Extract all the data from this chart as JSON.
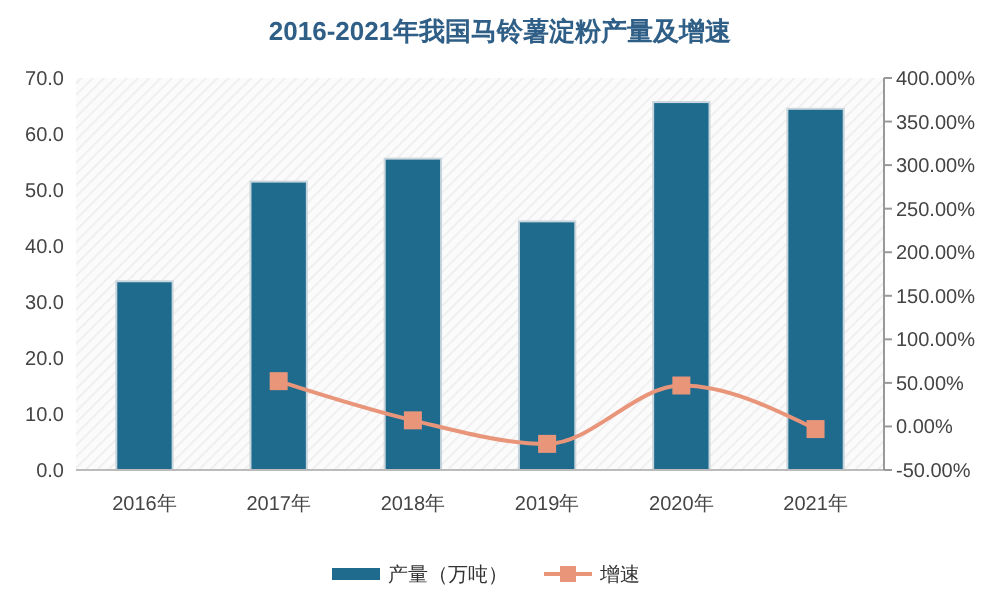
{
  "chart_data": {
    "type": "bar",
    "title": "2016-2021年我国马铃薯淀粉产量及增速",
    "categories": [
      "2016年",
      "2017年",
      "2018年",
      "2019年",
      "2020年",
      "2021年"
    ],
    "series": [
      {
        "name": "产量（万吨）",
        "color": "#1f6b8e",
        "values": [
          33.7,
          51.5,
          55.6,
          44.4,
          65.7,
          64.5
        ]
      },
      {
        "name": "增速",
        "type": "line",
        "axis": "y2",
        "color": "#e8957a",
        "marker": "square",
        "values": [
          null,
          52,
          7,
          -20,
          47,
          -3
        ]
      }
    ],
    "ylim": [
      0,
      70
    ],
    "yticks": [
      {
        "value": 0,
        "label": "0.0"
      },
      {
        "value": 10,
        "label": "10.0"
      },
      {
        "value": 20,
        "label": "20.0"
      },
      {
        "value": 30,
        "label": "30.0"
      },
      {
        "value": 40,
        "label": "40.0"
      },
      {
        "value": 50,
        "label": "50.0"
      },
      {
        "value": 60,
        "label": "60.0"
      },
      {
        "value": 70,
        "label": "70.0"
      }
    ],
    "y2lim": [
      -50,
      400
    ],
    "y2ticks": [
      {
        "value": -50,
        "label": "-50.00%"
      },
      {
        "value": 0,
        "label": "0.00%"
      },
      {
        "value": 50,
        "label": "50.00%"
      },
      {
        "value": 100,
        "label": "100.00%"
      },
      {
        "value": 150,
        "label": "150.00%"
      },
      {
        "value": 200,
        "label": "200.00%"
      },
      {
        "value": 250,
        "label": "250.00%"
      },
      {
        "value": 300,
        "label": "300.00%"
      },
      {
        "value": 350,
        "label": "350.00%"
      },
      {
        "value": 400,
        "label": "400.00%"
      }
    ],
    "legend": "bottom",
    "grid": false
  }
}
